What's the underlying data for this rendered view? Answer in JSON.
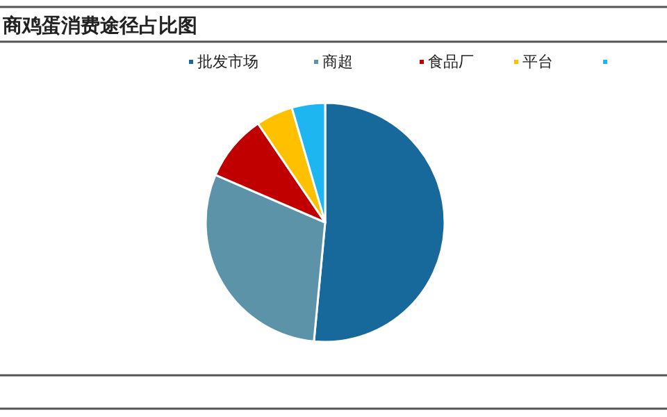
{
  "chart_data": {
    "type": "pie",
    "title": "商鸡蛋消费途径占比图",
    "categories": [
      "批发市场",
      "商超",
      "食品厂",
      "平台",
      null
    ],
    "values": [
      51.5,
      30,
      9,
      5,
      4.5
    ],
    "colors": [
      "#17699b",
      "#5c93a8",
      "#c00000",
      "#ffc000",
      "#1eb6f0"
    ],
    "legend": "top"
  }
}
